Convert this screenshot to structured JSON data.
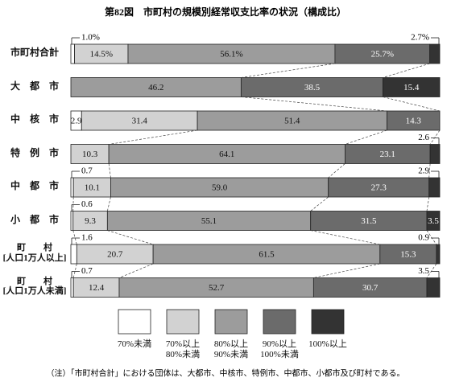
{
  "chart_data": {
    "type": "stacked-bar-100",
    "title": "第82図　市町村の規模別経常収支比率の状況（構成比）",
    "note": "（注）「市町村合計」における団体は、大都市、中核市、特例市、中都市、小都市及び町村である。",
    "categories": [
      "市町村合計",
      "大　都　市",
      "中　核　市",
      "特　例　市",
      "中　都　市",
      "小　都　市",
      "町　　村\n[人口1万人以上]",
      "町　　村\n[人口1万人未満]"
    ],
    "series": [
      {
        "name": "70%未満",
        "color": "#ffffff",
        "values": [
          1.0,
          null,
          2.9,
          null,
          0.7,
          0.6,
          1.6,
          0.7
        ],
        "value_labels": [
          "1.0%",
          null,
          "2.9",
          null,
          "0.7",
          "0.6",
          "1.6",
          "0.7"
        ]
      },
      {
        "name": "70%以上\n80%未満",
        "color": "#d2d2d2",
        "values": [
          14.5,
          null,
          31.4,
          10.3,
          10.1,
          9.3,
          20.7,
          12.4
        ],
        "value_labels": [
          "14.5%",
          null,
          "31.4",
          "10.3",
          "10.1",
          "9.3",
          "20.7",
          "12.4"
        ]
      },
      {
        "name": "80%以上\n90%未満",
        "color": "#9c9c9c",
        "values": [
          56.1,
          46.2,
          51.4,
          64.1,
          59.0,
          55.1,
          61.5,
          52.7
        ],
        "value_labels": [
          "56.1%",
          "46.2",
          "51.4",
          "64.1",
          "59.0",
          "55.1",
          "61.5",
          "52.7"
        ]
      },
      {
        "name": "90%以上\n100%未満",
        "color": "#6b6b6b",
        "values": [
          25.7,
          38.5,
          14.3,
          23.1,
          27.3,
          31.5,
          15.3,
          30.7
        ],
        "value_labels": [
          "25.7%",
          "38.5",
          "14.3",
          "23.1",
          "27.3",
          "31.5",
          "15.3",
          "30.7"
        ]
      },
      {
        "name": "100%以上",
        "color": "#333333",
        "values": [
          2.7,
          15.4,
          null,
          2.6,
          2.9,
          3.5,
          0.9,
          3.5
        ],
        "value_labels": [
          "2.7%",
          "15.4",
          null,
          "2.6",
          "2.9",
          "3.5",
          "0.9",
          "3.5"
        ]
      }
    ]
  }
}
